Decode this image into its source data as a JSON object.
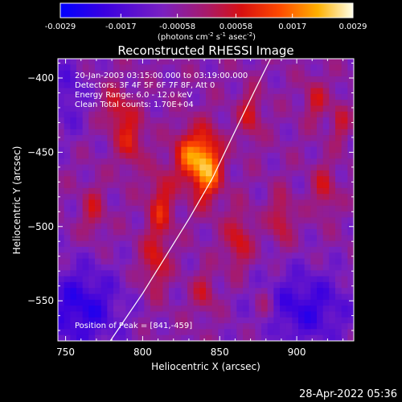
{
  "chart_data": {
    "type": "heatmap",
    "title": "Reconstructed RHESSI Image",
    "xlabel": "Heliocentric X (arcsec)",
    "ylabel": "Heliocentric Y (arcsec)",
    "xlim": [
      745,
      937
    ],
    "ylim": [
      -577,
      -387
    ],
    "x_ticks": [
      750,
      800,
      850,
      900
    ],
    "y_ticks": [
      -400,
      -450,
      -500,
      -550
    ],
    "colorbar": {
      "min": -0.0029,
      "max": 0.0029,
      "ticks": [
        "-0.0029",
        "-0.0017",
        "-0.00058",
        "0.00058",
        "0.0017",
        "0.0029"
      ],
      "tick_values": [
        -0.0029,
        -0.0017,
        -0.00058,
        0.00058,
        0.0017,
        0.0029
      ],
      "label_pre": "(photons cm",
      "label_sup1": "-2",
      "label_mid": " s",
      "label_sup2": "-1",
      "label_mid2": " asec",
      "label_sup3": "-2",
      "label_post": ")"
    },
    "annotations": [
      "20-Jan-2003 03:15:00.000 to 03:19:00.000",
      "Detectors: 3F 4F 5F 6F 7F 8F, Att 0",
      "Energy Range: 6.0 - 12.0 keV",
      "Clean    Total counts: 1.70E+04"
    ],
    "peak_label": "Position of Peak = [841,-459]",
    "peak": {
      "x": 841,
      "y": -459,
      "value": 0.0029
    },
    "limb_curve": [
      [
        779,
        -577
      ],
      [
        800,
        -545
      ],
      [
        815,
        -520
      ],
      [
        830,
        -495
      ],
      [
        845,
        -468
      ],
      [
        858,
        -440
      ],
      [
        872,
        -410
      ],
      [
        883,
        -387
      ]
    ],
    "grid_size": [
      48,
      48
    ],
    "bright_sources": [
      {
        "x": 841,
        "y": -459,
        "amp": 0.0029,
        "sx": 7,
        "sy": 16
      },
      {
        "x": 828,
        "y": -452,
        "amp": 0.0016,
        "sx": 6,
        "sy": 12
      },
      {
        "x": 792,
        "y": -440,
        "amp": 0.0014,
        "sx": 6,
        "sy": 14
      },
      {
        "x": 782,
        "y": -420,
        "amp": 0.0012,
        "sx": 5,
        "sy": 10
      },
      {
        "x": 812,
        "y": -485,
        "amp": 0.0014,
        "sx": 6,
        "sy": 16
      },
      {
        "x": 808,
        "y": -525,
        "amp": 0.0013,
        "sx": 6,
        "sy": 14
      },
      {
        "x": 862,
        "y": -510,
        "amp": 0.0013,
        "sx": 6,
        "sy": 14
      },
      {
        "x": 870,
        "y": -425,
        "amp": 0.0012,
        "sx": 5,
        "sy": 12
      },
      {
        "x": 890,
        "y": -495,
        "amp": 0.0012,
        "sx": 5,
        "sy": 12
      },
      {
        "x": 918,
        "y": -475,
        "amp": 0.0011,
        "sx": 5,
        "sy": 12
      },
      {
        "x": 912,
        "y": -415,
        "amp": 0.0011,
        "sx": 5,
        "sy": 10
      },
      {
        "x": 768,
        "y": -490,
        "amp": 0.001,
        "sx": 5,
        "sy": 12
      },
      {
        "x": 840,
        "y": -545,
        "amp": 0.001,
        "sx": 5,
        "sy": 10
      },
      {
        "x": 880,
        "y": -555,
        "amp": 0.0009,
        "sx": 5,
        "sy": 10
      },
      {
        "x": 928,
        "y": -430,
        "amp": 0.001,
        "sx": 4,
        "sy": 10
      }
    ],
    "dark_sources": [
      {
        "x": 760,
        "y": -555,
        "amp": -0.0016,
        "sx": 18,
        "sy": 20
      },
      {
        "x": 905,
        "y": -555,
        "amp": -0.0014,
        "sx": 22,
        "sy": 18
      },
      {
        "x": 752,
        "y": -410,
        "amp": -0.0009,
        "sx": 8,
        "sy": 20
      }
    ]
  },
  "footer": {
    "timestamp": "28-Apr-2022 05:36"
  }
}
